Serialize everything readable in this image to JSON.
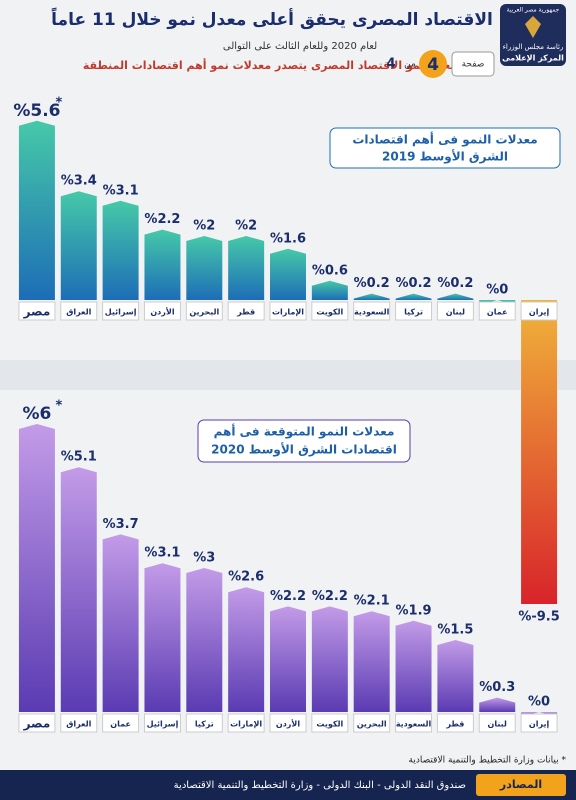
{
  "header": {
    "title": "الاقتصاد المصرى يحقق أعلى معدل نمو خلال 11 عاماً",
    "subtitle": "لعام 2020 وللعام الثالث على التوالى",
    "tagline": "معدل نمو الاقتصاد المصرى يتصدر معدلات نمو أهم اقتصادات المنطقة",
    "page_label": "صفحة",
    "page_number": "4",
    "of_label": "من",
    "page_total": "4",
    "logo_lines": [
      "جمهورية مصر العربية",
      "رئاسة مجلس الوزراء",
      "المركز الإعلامى"
    ]
  },
  "chart_data": [
    {
      "type": "bar",
      "title": [
        "معدلات النمو فى أهم اقتصادات",
        "الشرق الأوسط 2019"
      ],
      "categories": [
        "مصر",
        "العراق",
        "إسرائيل",
        "الأردن",
        "البحرين",
        "قطر",
        "الإمارات",
        "الكويت",
        "السعودية",
        "تركيا",
        "لبنان",
        "عمان",
        "إيران"
      ],
      "values": [
        5.6,
        3.4,
        3.1,
        2.2,
        2,
        2,
        1.6,
        0.6,
        0.2,
        0.2,
        0.2,
        0,
        -9.5
      ],
      "value_labels": [
        "%5.6",
        "%3.4",
        "%3.1",
        "%2.2",
        "%2",
        "%2",
        "%1.6",
        "%0.6",
        "%0.2",
        "%0.2",
        "%0.2",
        "%0",
        "%-9.5"
      ],
      "color": [
        "#46c9a8",
        "#1d6db6"
      ],
      "negative_color": [
        "#f0b43a",
        "#d8242a"
      ],
      "annotation": "*"
    },
    {
      "type": "bar",
      "title": [
        "معدلات النمو المتوقعة فى أهم",
        "اقتصادات الشرق الأوسط 2020"
      ],
      "categories": [
        "مصر",
        "العراق",
        "عمان",
        "إسرائيل",
        "تركيا",
        "الإمارات",
        "الأردن",
        "الكويت",
        "البحرين",
        "السعودية",
        "قطر",
        "لبنان",
        "إيران"
      ],
      "values": [
        6,
        5.1,
        3.7,
        3.1,
        3,
        2.6,
        2.2,
        2.2,
        2.1,
        1.9,
        1.5,
        0.3,
        0
      ],
      "value_labels": [
        "%6",
        "%5.1",
        "%3.7",
        "%3.1",
        "%3",
        "%2.6",
        "%2.2",
        "%2.2",
        "%2.1",
        "%1.9",
        "%1.5",
        "%0.3",
        "%0"
      ],
      "color": [
        "#c39be8",
        "#5a3bb2"
      ],
      "annotation": "*"
    }
  ],
  "footer": {
    "note": "* بيانات وزارة التخطيط والتنمية الاقتصادية",
    "sources_label": "المصادر",
    "sources": "صندوق النقد الدولى - البنك الدولى - وزارة التخطيط والتنمية الاقتصادية"
  }
}
